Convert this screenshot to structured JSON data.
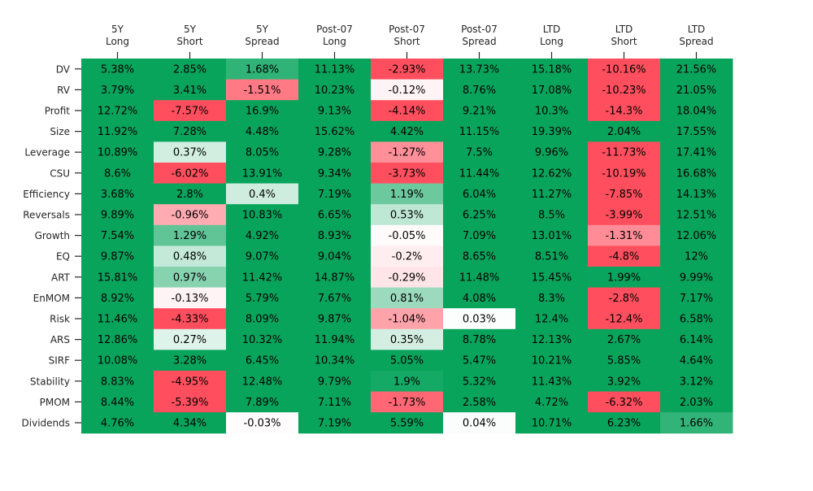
{
  "chart_data": {
    "type": "heatmap",
    "columns": [
      [
        "5Y",
        "Long"
      ],
      [
        "5Y",
        "Short"
      ],
      [
        "5Y",
        "Spread"
      ],
      [
        "Post-07",
        "Long"
      ],
      [
        "Post-07",
        "Short"
      ],
      [
        "Post-07",
        "Spread"
      ],
      [
        "LTD",
        "Long"
      ],
      [
        "LTD",
        "Short"
      ],
      [
        "LTD",
        "Spread"
      ]
    ],
    "rows": [
      "DV",
      "RV",
      "Profit",
      "Size",
      "Leverage",
      "CSU",
      "Efficiency",
      "Reversals",
      "Growth",
      "EQ",
      "ART",
      "EnMOM",
      "Risk",
      "ARS",
      "SIRF",
      "Stability",
      "PMOM",
      "Dividends"
    ],
    "values": [
      [
        5.38,
        2.85,
        1.68,
        11.13,
        -2.93,
        13.73,
        15.18,
        -10.16,
        21.56
      ],
      [
        3.79,
        3.41,
        -1.51,
        10.23,
        -0.12,
        8.76,
        17.08,
        -10.23,
        21.05
      ],
      [
        12.72,
        -7.57,
        16.9,
        9.13,
        -4.14,
        9.21,
        10.3,
        -14.3,
        18.04
      ],
      [
        11.92,
        7.28,
        4.48,
        15.62,
        4.42,
        11.15,
        19.39,
        2.04,
        17.55
      ],
      [
        10.89,
        0.37,
        8.05,
        9.28,
        -1.27,
        7.5,
        9.96,
        -11.73,
        17.41
      ],
      [
        8.6,
        -6.02,
        13.91,
        9.34,
        -3.73,
        11.44,
        12.62,
        -10.19,
        16.68
      ],
      [
        3.68,
        2.8,
        0.4,
        7.19,
        1.19,
        6.04,
        11.27,
        -7.85,
        14.13
      ],
      [
        9.89,
        -0.96,
        10.83,
        6.65,
        0.53,
        6.25,
        8.5,
        -3.99,
        12.51
      ],
      [
        7.54,
        1.29,
        4.92,
        8.93,
        -0.05,
        7.09,
        13.01,
        -1.31,
        12.06
      ],
      [
        9.87,
        0.48,
        9.07,
        9.04,
        -0.2,
        8.65,
        8.51,
        -4.8,
        12.0
      ],
      [
        15.81,
        0.97,
        11.42,
        14.87,
        -0.29,
        11.48,
        15.45,
        1.99,
        9.99
      ],
      [
        8.92,
        -0.13,
        5.79,
        7.67,
        0.81,
        4.08,
        8.3,
        -2.8,
        7.17
      ],
      [
        11.46,
        -4.33,
        8.09,
        9.87,
        -1.04,
        0.03,
        12.4,
        -12.4,
        6.58
      ],
      [
        12.86,
        0.27,
        10.32,
        11.94,
        0.35,
        8.78,
        12.13,
        2.67,
        6.14
      ],
      [
        10.08,
        3.28,
        6.45,
        10.34,
        5.05,
        5.47,
        10.21,
        5.85,
        4.64
      ],
      [
        8.83,
        -4.95,
        12.48,
        9.79,
        1.9,
        5.32,
        11.43,
        3.92,
        3.12
      ],
      [
        8.44,
        -5.39,
        7.89,
        7.11,
        -1.73,
        2.58,
        4.72,
        -6.32,
        2.03
      ],
      [
        4.76,
        4.34,
        -0.03,
        7.19,
        5.59,
        0.04,
        10.71,
        6.23,
        1.66
      ]
    ],
    "value_suffix": "%",
    "color_scale": {
      "negative": "#ff4f5e",
      "midpoint": "#ffffff",
      "positive": "#08a45c",
      "vmin": -2,
      "vmax": 2
    },
    "x_axis_position": "top",
    "grid": false,
    "legend": "none"
  }
}
